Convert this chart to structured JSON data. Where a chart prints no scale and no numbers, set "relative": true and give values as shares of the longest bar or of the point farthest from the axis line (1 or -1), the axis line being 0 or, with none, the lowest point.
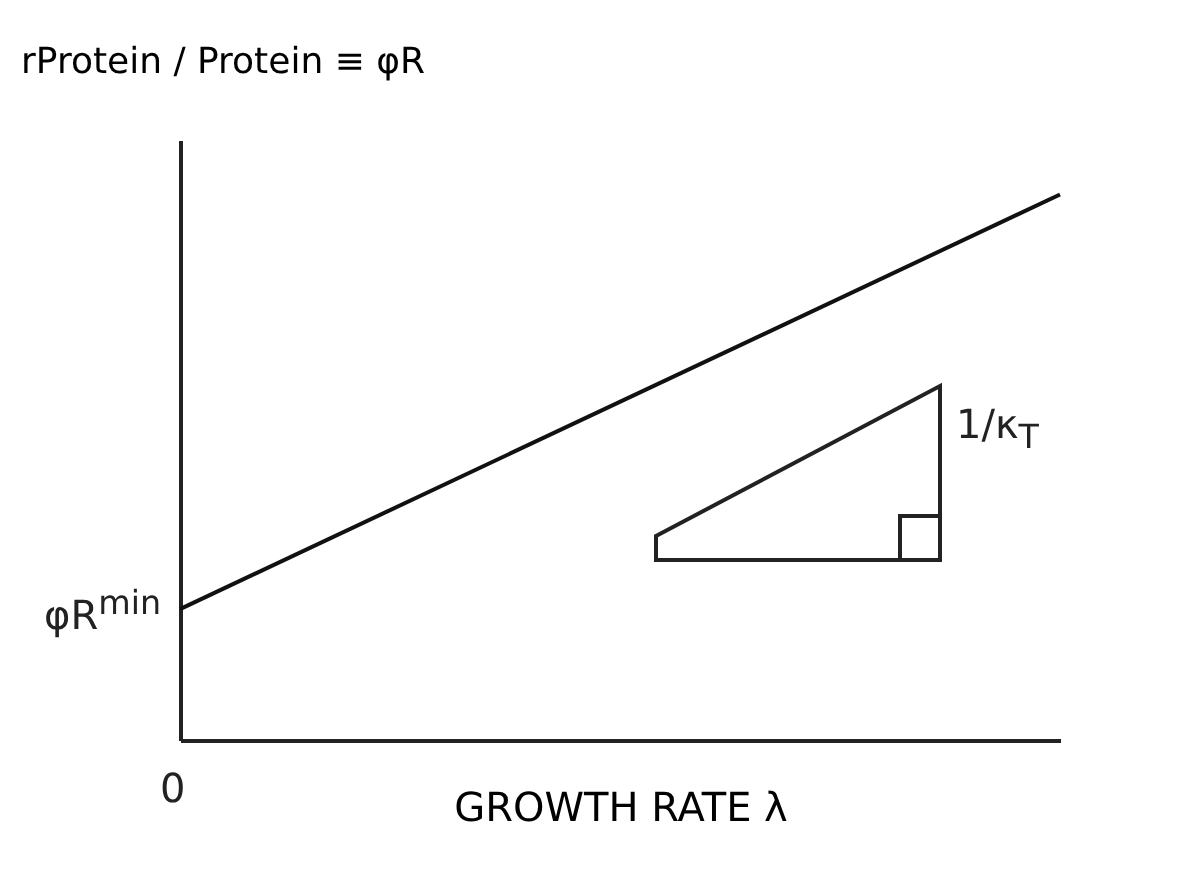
{
  "chart_data": {
    "type": "line",
    "relative": true,
    "ylabel": "rProtein / Protein ≡ φR",
    "xlabel": "GROWTH RATE λ",
    "categories": [
      null,
      null
    ],
    "series": [
      {
        "color": "#111111",
        "values": [
          0.24,
          1
        ]
      }
    ],
    "annotations": [
      "0",
      "φR$^{min}$",
      "1/κ$_{T}$"
    ],
    "marker": "none",
    "grid": false,
    "legend": false
  }
}
